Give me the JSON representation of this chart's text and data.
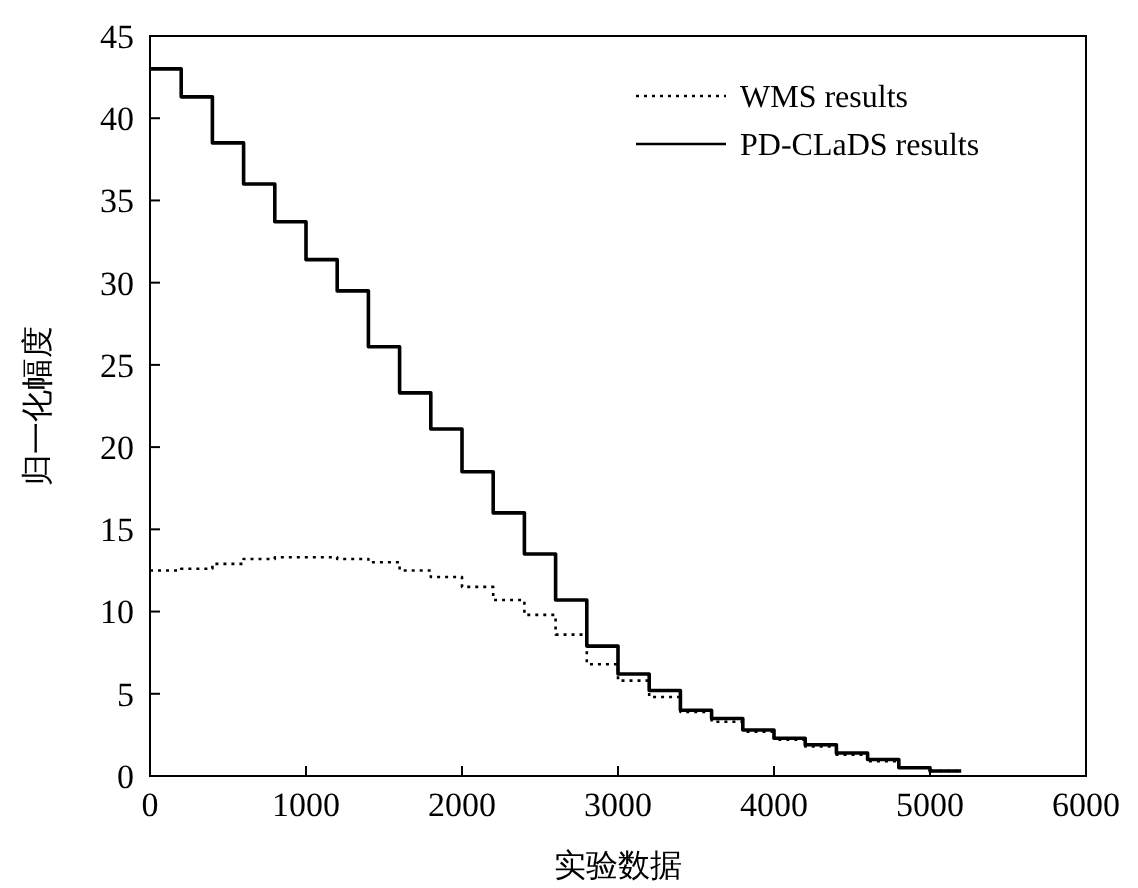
{
  "chart_data": {
    "type": "step",
    "xlabel": "实验数据",
    "ylabel": "归一化幅度",
    "xlim": [
      0,
      6000
    ],
    "ylim": [
      0,
      45
    ],
    "xticks": [
      0,
      1000,
      2000,
      3000,
      4000,
      5000,
      6000
    ],
    "yticks": [
      0,
      5,
      10,
      15,
      20,
      25,
      30,
      35,
      40,
      45
    ],
    "legend": "top right",
    "grid": false,
    "x": [
      0,
      200,
      400,
      600,
      800,
      1000,
      1200,
      1400,
      1600,
      1800,
      2000,
      2200,
      2400,
      2600,
      2800,
      3000,
      3200,
      3400,
      3600,
      3800,
      4000,
      4200,
      4400,
      4600,
      4800,
      5000,
      5200
    ],
    "series": [
      {
        "name": "WMS results",
        "color": "#000000",
        "line_style": "dotted",
        "values": [
          12.5,
          12.6,
          12.9,
          13.2,
          13.3,
          13.3,
          13.2,
          13.0,
          12.5,
          12.1,
          11.5,
          10.7,
          9.8,
          8.6,
          6.8,
          5.8,
          4.8,
          3.9,
          3.3,
          2.7,
          2.2,
          1.8,
          1.3,
          0.9,
          0.5,
          0.3,
          0.3
        ]
      },
      {
        "name": "PD-CLaDS results",
        "color": "#000000",
        "line_style": "solid",
        "values": [
          43,
          41.3,
          38.5,
          36,
          33.7,
          31.4,
          29.5,
          26.1,
          23.3,
          21.1,
          18.5,
          16,
          13.5,
          10.7,
          7.9,
          6.2,
          5.2,
          4.0,
          3.5,
          2.8,
          2.3,
          1.9,
          1.4,
          1.0,
          0.5,
          0.3,
          0.3
        ]
      }
    ]
  }
}
